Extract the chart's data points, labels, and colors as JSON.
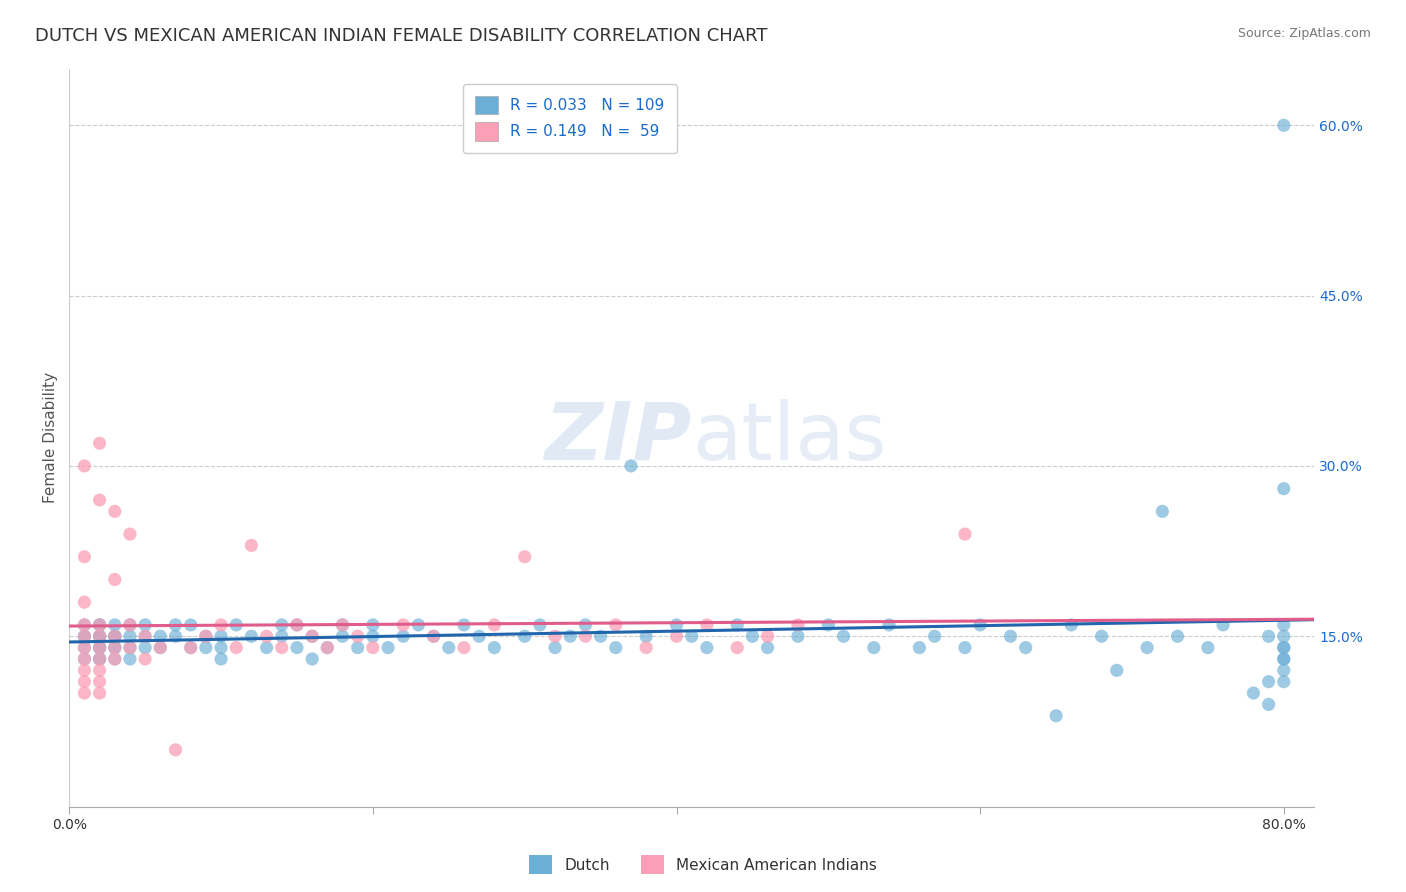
{
  "title": "DUTCH VS MEXICAN AMERICAN INDIAN FEMALE DISABILITY CORRELATION CHART",
  "source": "Source: ZipAtlas.com",
  "ylabel": "Female Disability",
  "watermark": "ZIPatlas",
  "xlim": [
    0.0,
    0.82
  ],
  "ylim": [
    0.0,
    0.65
  ],
  "ytick_labels_right": [
    "15.0%",
    "30.0%",
    "45.0%",
    "60.0%"
  ],
  "ytick_vals_right": [
    0.15,
    0.3,
    0.45,
    0.6
  ],
  "dutch_color": "#6baed6",
  "dutch_line_color": "#2166ac",
  "mexican_color": "#fa9fb5",
  "mexican_line_color": "#e05c8a",
  "dutch_scatter_x": [
    0.01,
    0.01,
    0.01,
    0.01,
    0.01,
    0.02,
    0.02,
    0.02,
    0.02,
    0.02,
    0.02,
    0.02,
    0.02,
    0.02,
    0.02,
    0.03,
    0.03,
    0.03,
    0.03,
    0.03,
    0.03,
    0.03,
    0.04,
    0.04,
    0.04,
    0.04,
    0.05,
    0.05,
    0.05,
    0.06,
    0.06,
    0.07,
    0.07,
    0.08,
    0.08,
    0.09,
    0.09,
    0.1,
    0.1,
    0.1,
    0.11,
    0.12,
    0.13,
    0.14,
    0.14,
    0.15,
    0.15,
    0.16,
    0.16,
    0.17,
    0.18,
    0.18,
    0.19,
    0.2,
    0.2,
    0.21,
    0.22,
    0.23,
    0.24,
    0.25,
    0.26,
    0.27,
    0.28,
    0.3,
    0.31,
    0.32,
    0.33,
    0.34,
    0.35,
    0.36,
    0.37,
    0.38,
    0.4,
    0.41,
    0.42,
    0.44,
    0.45,
    0.46,
    0.48,
    0.5,
    0.51,
    0.53,
    0.54,
    0.56,
    0.57,
    0.59,
    0.6,
    0.62,
    0.63,
    0.65,
    0.66,
    0.68,
    0.69,
    0.71,
    0.72,
    0.73,
    0.75,
    0.76,
    0.78,
    0.79,
    0.79,
    0.79,
    0.8,
    0.8,
    0.8,
    0.8,
    0.8,
    0.8,
    0.8,
    0.8,
    0.8,
    0.8
  ],
  "dutch_scatter_y": [
    0.14,
    0.15,
    0.16,
    0.13,
    0.15,
    0.14,
    0.15,
    0.13,
    0.16,
    0.15,
    0.14,
    0.13,
    0.15,
    0.14,
    0.16,
    0.15,
    0.14,
    0.13,
    0.16,
    0.15,
    0.14,
    0.15,
    0.15,
    0.14,
    0.16,
    0.13,
    0.14,
    0.16,
    0.15,
    0.15,
    0.14,
    0.16,
    0.15,
    0.14,
    0.16,
    0.15,
    0.14,
    0.15,
    0.14,
    0.13,
    0.16,
    0.15,
    0.14,
    0.16,
    0.15,
    0.14,
    0.16,
    0.15,
    0.13,
    0.14,
    0.16,
    0.15,
    0.14,
    0.15,
    0.16,
    0.14,
    0.15,
    0.16,
    0.15,
    0.14,
    0.16,
    0.15,
    0.14,
    0.15,
    0.16,
    0.14,
    0.15,
    0.16,
    0.15,
    0.14,
    0.3,
    0.15,
    0.16,
    0.15,
    0.14,
    0.16,
    0.15,
    0.14,
    0.15,
    0.16,
    0.15,
    0.14,
    0.16,
    0.14,
    0.15,
    0.14,
    0.16,
    0.15,
    0.14,
    0.08,
    0.16,
    0.15,
    0.12,
    0.14,
    0.26,
    0.15,
    0.14,
    0.16,
    0.1,
    0.09,
    0.11,
    0.15,
    0.28,
    0.6,
    0.14,
    0.13,
    0.12,
    0.11,
    0.15,
    0.16,
    0.13,
    0.14
  ],
  "mexican_scatter_x": [
    0.01,
    0.01,
    0.01,
    0.01,
    0.01,
    0.01,
    0.01,
    0.01,
    0.01,
    0.01,
    0.02,
    0.02,
    0.02,
    0.02,
    0.02,
    0.02,
    0.02,
    0.02,
    0.02,
    0.03,
    0.03,
    0.03,
    0.03,
    0.03,
    0.04,
    0.04,
    0.04,
    0.05,
    0.05,
    0.06,
    0.07,
    0.08,
    0.09,
    0.1,
    0.11,
    0.12,
    0.13,
    0.14,
    0.15,
    0.16,
    0.17,
    0.18,
    0.19,
    0.2,
    0.22,
    0.24,
    0.26,
    0.28,
    0.3,
    0.32,
    0.34,
    0.36,
    0.38,
    0.4,
    0.42,
    0.44,
    0.46,
    0.48,
    0.59
  ],
  "mexican_scatter_y": [
    0.14,
    0.12,
    0.16,
    0.1,
    0.13,
    0.15,
    0.11,
    0.3,
    0.22,
    0.18,
    0.32,
    0.27,
    0.14,
    0.13,
    0.16,
    0.15,
    0.12,
    0.11,
    0.1,
    0.2,
    0.26,
    0.14,
    0.15,
    0.13,
    0.24,
    0.16,
    0.14,
    0.15,
    0.13,
    0.14,
    0.05,
    0.14,
    0.15,
    0.16,
    0.14,
    0.23,
    0.15,
    0.14,
    0.16,
    0.15,
    0.14,
    0.16,
    0.15,
    0.14,
    0.16,
    0.15,
    0.14,
    0.16,
    0.22,
    0.15,
    0.15,
    0.16,
    0.14,
    0.15,
    0.16,
    0.14,
    0.15,
    0.16,
    0.24
  ],
  "background_color": "#ffffff",
  "grid_color": "#cccccc",
  "title_fontsize": 13,
  "axis_label_fontsize": 11,
  "tick_fontsize": 10,
  "legend_color": "#1a6bcc"
}
